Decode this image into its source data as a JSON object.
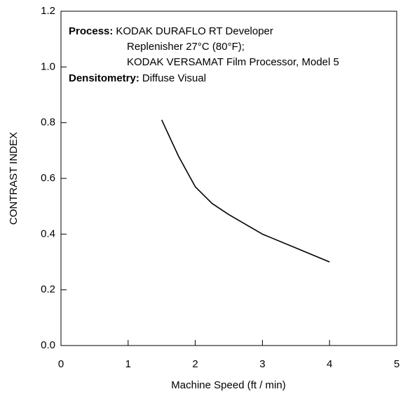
{
  "chart_data": {
    "type": "line",
    "x_label": "Machine Speed (ft / min)",
    "y_label": "CONTRAST INDEX",
    "annotations": [
      {
        "label": "Process:",
        "lines": [
          "KODAK DURAFLO RT Developer",
          "Replenisher 27°C (80°F);",
          "KODAK VERSAMAT Film Processor, Model 5"
        ]
      },
      {
        "label": "Densitometry:",
        "lines": [
          "Diffuse Visual"
        ]
      }
    ],
    "x": [
      1.5,
      1.75,
      2,
      2.25,
      2.5,
      3,
      3.5,
      4
    ],
    "series": [
      {
        "color": "#000000",
        "values": [
          0.81,
          0.68,
          0.57,
          0.51,
          0.47,
          0.4,
          0.35,
          0.3
        ]
      }
    ],
    "xlim": [
      0,
      5
    ],
    "xticks": [
      0,
      1,
      2,
      3,
      4,
      5
    ],
    "ylim": [
      0,
      1.2
    ],
    "yticks": [
      {
        "value": 0,
        "label": "0.0"
      },
      0.2,
      0.4,
      0.6,
      0.8,
      {
        "value": 1,
        "label": "1.0"
      },
      1.2
    ]
  }
}
